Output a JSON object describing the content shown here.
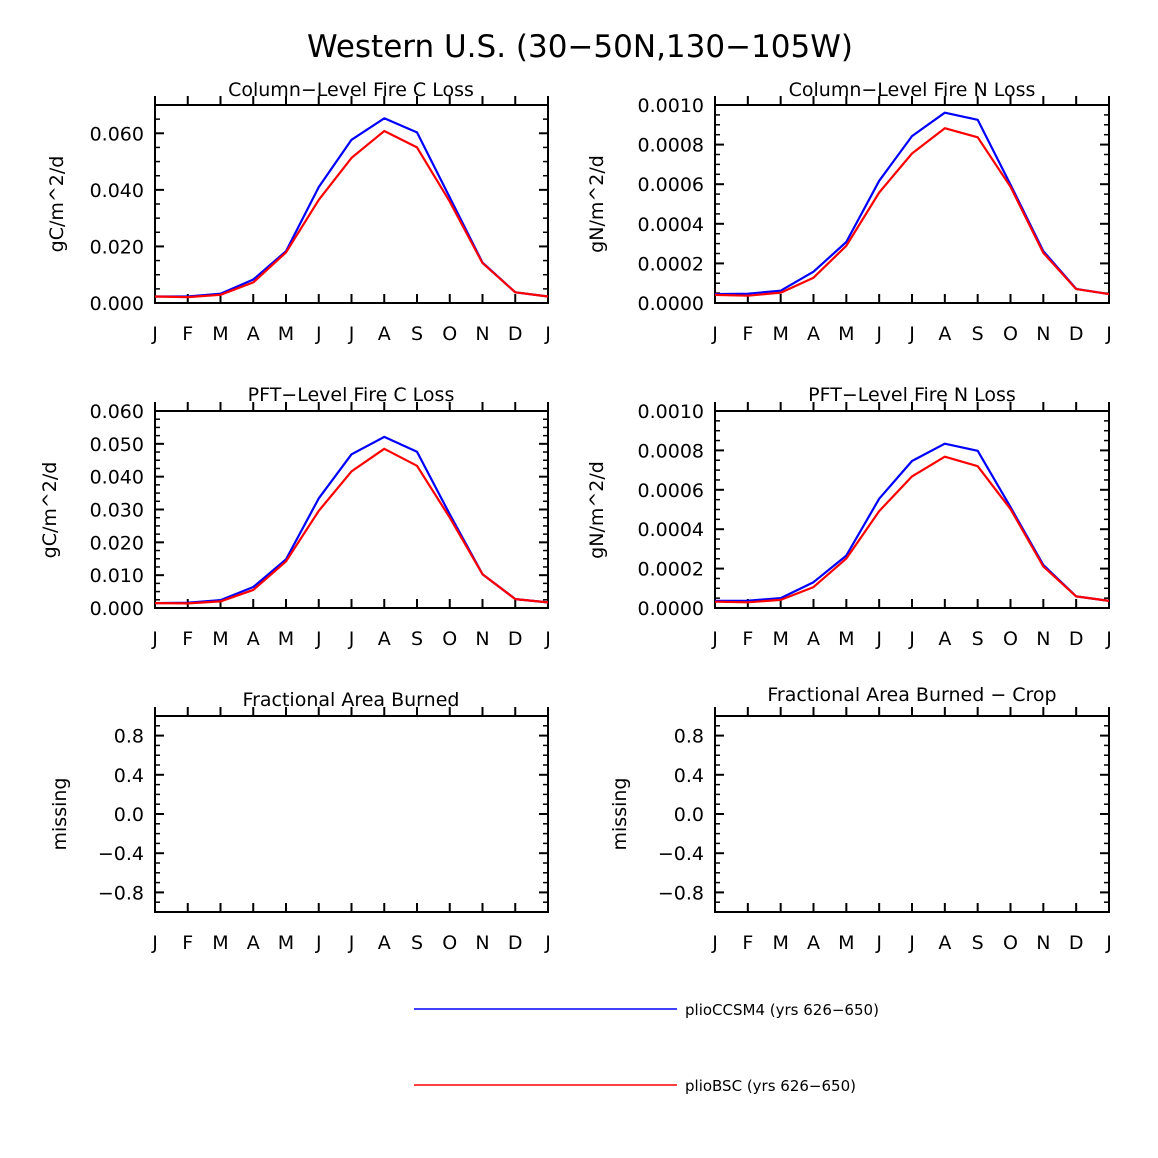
{
  "figure": {
    "title": "Western U.S. (30−50N,130−105W)"
  },
  "colors": {
    "series_1": "#0000ff",
    "series_2": "#ff0000",
    "axis": "#000000"
  },
  "legend": [
    {
      "label": "plioCCSM4 (yrs 626−650)",
      "color": "#0000ff"
    },
    {
      "label": "plioBSC (yrs 626−650)",
      "color": "#ff0000"
    }
  ],
  "chart_data": [
    {
      "type": "line",
      "title": "Column−Level Fire C Loss",
      "ylabel": "gC/m^2/d",
      "xlabel": "",
      "categories": [
        "J",
        "F",
        "M",
        "A",
        "M",
        "J",
        "J",
        "A",
        "S",
        "O",
        "N",
        "D",
        "J"
      ],
      "ylim": [
        0,
        0.07
      ],
      "yticks": [
        0,
        0.02,
        0.04,
        0.06
      ],
      "ytick_labels": [
        "0.000",
        "0.020",
        "0.040",
        "0.060"
      ],
      "series": [
        {
          "name": "plioCCSM4 (yrs 626−650)",
          "color": "#0000ff",
          "values": [
            0.0023,
            0.0023,
            0.0033,
            0.0083,
            0.0183,
            0.041,
            0.0577,
            0.0653,
            0.0603,
            0.0373,
            0.0143,
            0.0038,
            0.0023
          ]
        },
        {
          "name": "plioBSC (yrs 626−650)",
          "color": "#ff0000",
          "values": [
            0.0023,
            0.0021,
            0.0029,
            0.0073,
            0.0179,
            0.0365,
            0.0513,
            0.0608,
            0.055,
            0.0358,
            0.0141,
            0.0038,
            0.0023
          ]
        }
      ]
    },
    {
      "type": "line",
      "title": "Column−Level Fire N Loss",
      "ylabel": "gN/m^2/d",
      "xlabel": "",
      "categories": [
        "J",
        "F",
        "M",
        "A",
        "M",
        "J",
        "J",
        "A",
        "S",
        "O",
        "N",
        "D",
        "J"
      ],
      "ylim": [
        0,
        0.001
      ],
      "yticks": [
        0,
        0.0002,
        0.0004,
        0.0006,
        0.0008,
        0.001
      ],
      "ytick_labels": [
        "0.0000",
        "0.0002",
        "0.0004",
        "0.0006",
        "0.0008",
        "0.0010"
      ],
      "series": [
        {
          "name": "plioCCSM4 (yrs 626−650)",
          "color": "#0000ff",
          "values": [
            4.5e-05,
            4.7e-05,
            6.2e-05,
            0.000158,
            0.000308,
            0.000617,
            0.000843,
            0.000961,
            0.000925,
            0.000598,
            0.000262,
            7.1e-05,
            4.5e-05
          ]
        },
        {
          "name": "plioBSC (yrs 626−650)",
          "color": "#ff0000",
          "values": [
            4.1e-05,
            3.7e-05,
            5.2e-05,
            0.000128,
            0.000289,
            0.000558,
            0.000755,
            0.000883,
            0.000837,
            0.000587,
            0.000253,
            7e-05,
            4.5e-05
          ]
        }
      ]
    },
    {
      "type": "line",
      "title": "PFT−Level Fire C Loss",
      "ylabel": "gC/m^2/d",
      "xlabel": "",
      "categories": [
        "J",
        "F",
        "M",
        "A",
        "M",
        "J",
        "J",
        "A",
        "S",
        "O",
        "N",
        "D",
        "J"
      ],
      "ylim": [
        0,
        0.06
      ],
      "yticks": [
        0,
        0.01,
        0.02,
        0.03,
        0.04,
        0.05,
        0.06
      ],
      "ytick_labels": [
        "0.000",
        "0.010",
        "0.020",
        "0.030",
        "0.040",
        "0.050",
        "0.060"
      ],
      "series": [
        {
          "name": "plioCCSM4 (yrs 626−650)",
          "color": "#0000ff",
          "values": [
            0.0015,
            0.0016,
            0.0024,
            0.0064,
            0.0148,
            0.0334,
            0.0468,
            0.0521,
            0.0476,
            0.0285,
            0.0103,
            0.0027,
            0.0017
          ]
        },
        {
          "name": "plioBSC (yrs 626−650)",
          "color": "#ff0000",
          "values": [
            0.0015,
            0.0014,
            0.002,
            0.0055,
            0.0142,
            0.0296,
            0.0416,
            0.0485,
            0.0433,
            0.0275,
            0.0103,
            0.0027,
            0.0017
          ]
        }
      ]
    },
    {
      "type": "line",
      "title": "PFT−Level Fire N Loss",
      "ylabel": "gN/m^2/d",
      "xlabel": "",
      "categories": [
        "J",
        "F",
        "M",
        "A",
        "M",
        "J",
        "J",
        "A",
        "S",
        "O",
        "N",
        "D",
        "J"
      ],
      "ylim": [
        0,
        0.001
      ],
      "yticks": [
        0,
        0.0002,
        0.0004,
        0.0006,
        0.0008,
        0.001
      ],
      "ytick_labels": [
        "0.0000",
        "0.0002",
        "0.0004",
        "0.0006",
        "0.0008",
        "0.0010"
      ],
      "series": [
        {
          "name": "plioCCSM4 (yrs 626−650)",
          "color": "#0000ff",
          "values": [
            3.6e-05,
            3.7e-05,
            5e-05,
            0.000131,
            0.000266,
            0.000555,
            0.000746,
            0.000834,
            0.000798,
            0.000512,
            0.000219,
            5.9e-05,
            3.6e-05
          ]
        },
        {
          "name": "plioBSC (yrs 626−650)",
          "color": "#ff0000",
          "values": [
            3.2e-05,
            2.9e-05,
            4.1e-05,
            0.000106,
            0.000251,
            0.000492,
            0.000668,
            0.000768,
            0.00072,
            0.000502,
            0.000211,
            5.9e-05,
            3.6e-05
          ]
        }
      ]
    },
    {
      "type": "line",
      "title": "Fractional Area Burned",
      "ylabel": "missing",
      "xlabel": "",
      "categories": [
        "J",
        "F",
        "M",
        "A",
        "M",
        "J",
        "J",
        "A",
        "S",
        "O",
        "N",
        "D",
        "J"
      ],
      "ylim": [
        -1,
        1
      ],
      "yticks": [
        -0.8,
        -0.4,
        0,
        0.4,
        0.8
      ],
      "ytick_labels": [
        "−0.8",
        "−0.4",
        "0.0",
        "0.4",
        "0.8"
      ],
      "series": []
    },
    {
      "type": "line",
      "title": "Fractional Area Burned − Crop",
      "ylabel": "missing",
      "xlabel": "",
      "categories": [
        "J",
        "F",
        "M",
        "A",
        "M",
        "J",
        "J",
        "A",
        "S",
        "O",
        "N",
        "D",
        "J"
      ],
      "ylim": [
        -1,
        1
      ],
      "yticks": [
        -0.8,
        -0.4,
        0,
        0.4,
        0.8
      ],
      "ytick_labels": [
        "−0.8",
        "−0.4",
        "0.0",
        "0.4",
        "0.8"
      ],
      "series": []
    }
  ]
}
